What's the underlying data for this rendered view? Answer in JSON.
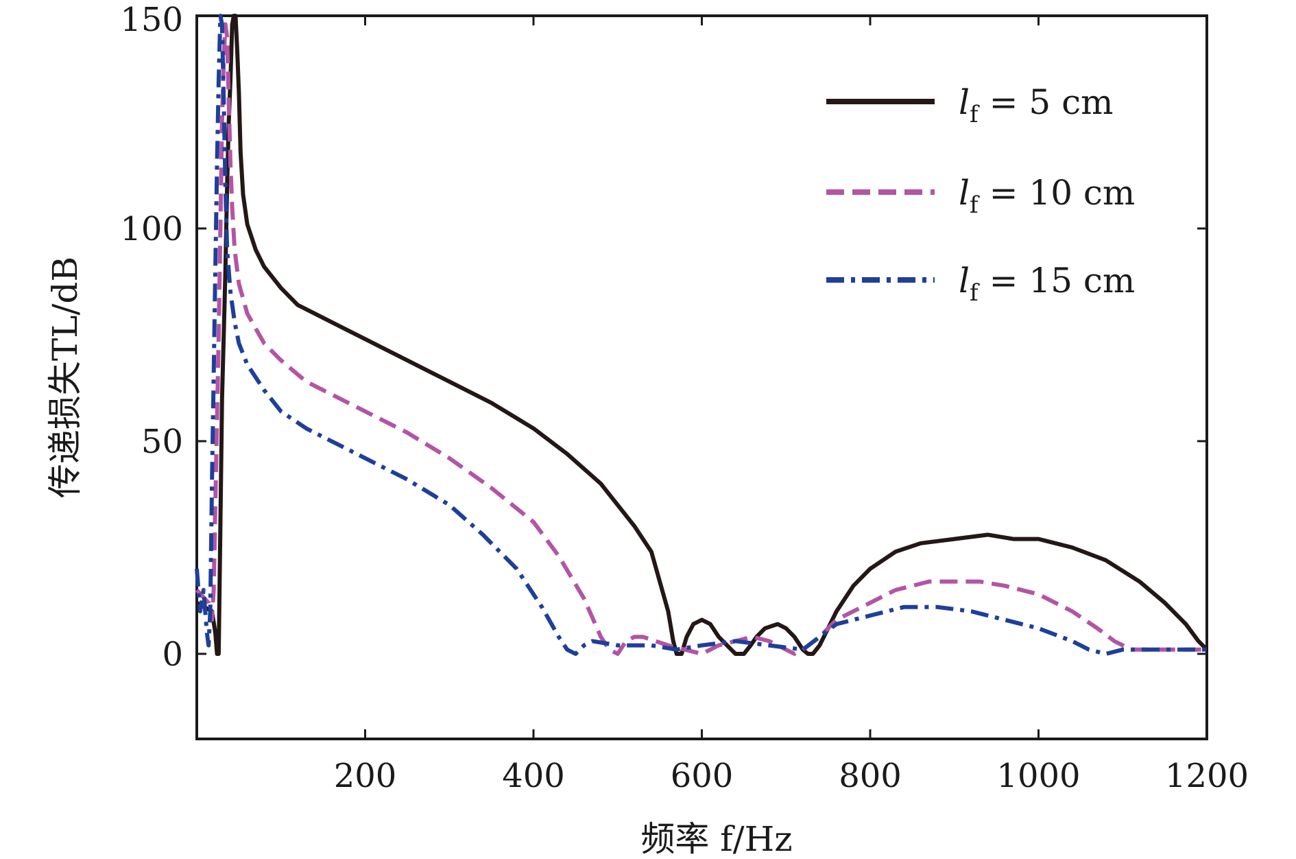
{
  "chart_data": {
    "type": "line",
    "xlabel": "频率 f/Hz",
    "ylabel": "传递损失TL/dB",
    "xlim": [
      0,
      1200
    ],
    "ylim": [
      -20,
      150
    ],
    "xticks": [
      200,
      400,
      600,
      800,
      1000,
      1200
    ],
    "yticks": [
      0,
      50,
      100,
      150
    ],
    "xtick_labels": [
      "200",
      "400",
      "600",
      "800",
      "1000",
      "1200"
    ],
    "ytick_labels": [
      "0",
      "50",
      "100",
      "150"
    ],
    "legend_position": "top-right",
    "series": [
      {
        "name": "lf = 5 cm",
        "label_var": "l",
        "label_sub": "f",
        "label_rest": "= 5 cm",
        "color": "#231815",
        "style": "solid",
        "points": [
          [
            0,
            12
          ],
          [
            18,
            10
          ],
          [
            22,
            5
          ],
          [
            24,
            0
          ],
          [
            26,
            0
          ],
          [
            28,
            30
          ],
          [
            30,
            60
          ],
          [
            32,
            75
          ],
          [
            34,
            90
          ],
          [
            36,
            110
          ],
          [
            38,
            125
          ],
          [
            40,
            135
          ],
          [
            42,
            148
          ],
          [
            44,
            150
          ],
          [
            46,
            150
          ],
          [
            48,
            142
          ],
          [
            50,
            132
          ],
          [
            52,
            118
          ],
          [
            55,
            108
          ],
          [
            60,
            101
          ],
          [
            70,
            95
          ],
          [
            80,
            91
          ],
          [
            100,
            86
          ],
          [
            120,
            82
          ],
          [
            150,
            79
          ],
          [
            180,
            76
          ],
          [
            200,
            74
          ],
          [
            250,
            69
          ],
          [
            300,
            64
          ],
          [
            350,
            59
          ],
          [
            400,
            53
          ],
          [
            440,
            47
          ],
          [
            480,
            40
          ],
          [
            520,
            30
          ],
          [
            540,
            24
          ],
          [
            560,
            10
          ],
          [
            566,
            3
          ],
          [
            570,
            0
          ],
          [
            576,
            0
          ],
          [
            582,
            4
          ],
          [
            590,
            7
          ],
          [
            600,
            8
          ],
          [
            610,
            7
          ],
          [
            620,
            4
          ],
          [
            630,
            2
          ],
          [
            640,
            0
          ],
          [
            650,
            0
          ],
          [
            658,
            2
          ],
          [
            665,
            4
          ],
          [
            675,
            6
          ],
          [
            690,
            7
          ],
          [
            700,
            6
          ],
          [
            710,
            4
          ],
          [
            720,
            1
          ],
          [
            726,
            0
          ],
          [
            732,
            0
          ],
          [
            740,
            2
          ],
          [
            750,
            6
          ],
          [
            760,
            10
          ],
          [
            780,
            16
          ],
          [
            800,
            20
          ],
          [
            830,
            24
          ],
          [
            860,
            26
          ],
          [
            900,
            27
          ],
          [
            940,
            28
          ],
          [
            970,
            27
          ],
          [
            1000,
            27
          ],
          [
            1040,
            25
          ],
          [
            1080,
            22
          ],
          [
            1120,
            17
          ],
          [
            1150,
            12
          ],
          [
            1175,
            7
          ],
          [
            1190,
            3
          ],
          [
            1200,
            1
          ]
        ]
      },
      {
        "name": "lf = 10 cm",
        "label_var": "l",
        "label_sub": "f",
        "label_rest": "= 10 cm",
        "color": "#B354A6",
        "style": "dashed",
        "points": [
          [
            0,
            15
          ],
          [
            14,
            12
          ],
          [
            18,
            8
          ],
          [
            20,
            15
          ],
          [
            22,
            35
          ],
          [
            24,
            55
          ],
          [
            26,
            75
          ],
          [
            28,
            100
          ],
          [
            30,
            125
          ],
          [
            32,
            140
          ],
          [
            34,
            148
          ],
          [
            36,
            145
          ],
          [
            38,
            130
          ],
          [
            40,
            115
          ],
          [
            42,
            105
          ],
          [
            45,
            95
          ],
          [
            50,
            87
          ],
          [
            60,
            80
          ],
          [
            80,
            73
          ],
          [
            100,
            69
          ],
          [
            130,
            64
          ],
          [
            160,
            61
          ],
          [
            200,
            57
          ],
          [
            250,
            52
          ],
          [
            300,
            46
          ],
          [
            350,
            39
          ],
          [
            400,
            31
          ],
          [
            430,
            23
          ],
          [
            460,
            13
          ],
          [
            480,
            4
          ],
          [
            490,
            1
          ],
          [
            500,
            0
          ],
          [
            510,
            3
          ],
          [
            520,
            4
          ],
          [
            530,
            4
          ],
          [
            545,
            3
          ],
          [
            560,
            2
          ],
          [
            580,
            1
          ],
          [
            600,
            0
          ],
          [
            620,
            2
          ],
          [
            640,
            3
          ],
          [
            660,
            4
          ],
          [
            680,
            3
          ],
          [
            700,
            1
          ],
          [
            710,
            0
          ],
          [
            720,
            1
          ],
          [
            740,
            4
          ],
          [
            760,
            8
          ],
          [
            800,
            12
          ],
          [
            830,
            15
          ],
          [
            870,
            17
          ],
          [
            900,
            17
          ],
          [
            930,
            17
          ],
          [
            960,
            16
          ],
          [
            1000,
            14
          ],
          [
            1040,
            10
          ],
          [
            1070,
            6
          ],
          [
            1090,
            3
          ],
          [
            1110,
            1
          ],
          [
            1130,
            1
          ],
          [
            1160,
            1
          ],
          [
            1200,
            1
          ]
        ]
      },
      {
        "name": "lf = 15 cm",
        "label_var": "l",
        "label_sub": "f",
        "label_rest": "= 15 cm",
        "color": "#1E3F9A",
        "style": "dashdot",
        "points": [
          [
            0,
            20
          ],
          [
            4,
            10
          ],
          [
            8,
            15
          ],
          [
            12,
            5
          ],
          [
            14,
            2
          ],
          [
            16,
            10
          ],
          [
            18,
            40
          ],
          [
            20,
            65
          ],
          [
            22,
            90
          ],
          [
            24,
            115
          ],
          [
            26,
            135
          ],
          [
            28,
            150
          ],
          [
            30,
            148
          ],
          [
            32,
            130
          ],
          [
            34,
            110
          ],
          [
            36,
            95
          ],
          [
            40,
            85
          ],
          [
            45,
            78
          ],
          [
            50,
            73
          ],
          [
            60,
            68
          ],
          [
            80,
            62
          ],
          [
            100,
            57
          ],
          [
            130,
            53
          ],
          [
            160,
            50
          ],
          [
            200,
            46
          ],
          [
            250,
            41
          ],
          [
            300,
            35
          ],
          [
            340,
            28
          ],
          [
            380,
            20
          ],
          [
            410,
            11
          ],
          [
            430,
            4
          ],
          [
            440,
            1
          ],
          [
            450,
            0
          ],
          [
            460,
            2
          ],
          [
            470,
            3
          ],
          [
            500,
            2
          ],
          [
            540,
            2
          ],
          [
            570,
            1
          ],
          [
            600,
            2
          ],
          [
            640,
            3
          ],
          [
            680,
            2
          ],
          [
            720,
            1
          ],
          [
            740,
            4
          ],
          [
            760,
            7
          ],
          [
            800,
            9
          ],
          [
            840,
            11
          ],
          [
            880,
            11
          ],
          [
            920,
            10
          ],
          [
            960,
            8
          ],
          [
            1000,
            6
          ],
          [
            1040,
            3
          ],
          [
            1060,
            1
          ],
          [
            1080,
            0
          ],
          [
            1100,
            1
          ],
          [
            1150,
            1
          ],
          [
            1200,
            1
          ]
        ]
      }
    ]
  }
}
